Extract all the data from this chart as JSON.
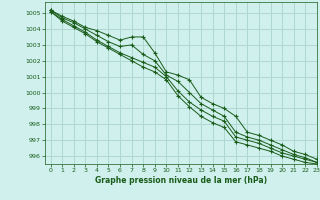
{
  "title": "Graphe pression niveau de la mer (hPa)",
  "background_color": "#cff0ec",
  "grid_color": "#afd8d2",
  "line_color": "#1a5c1a",
  "xlim": [
    -0.5,
    23
  ],
  "ylim": [
    995.5,
    1005.7
  ],
  "yticks": [
    996,
    997,
    998,
    999,
    1000,
    1001,
    1002,
    1003,
    1004,
    1005
  ],
  "xticks": [
    0,
    1,
    2,
    3,
    4,
    5,
    6,
    7,
    8,
    9,
    10,
    11,
    12,
    13,
    14,
    15,
    16,
    17,
    18,
    19,
    20,
    21,
    22,
    23
  ],
  "series": [
    [
      1005.2,
      1004.8,
      1004.5,
      1004.1,
      1003.9,
      1003.6,
      1003.3,
      1003.5,
      1003.5,
      1002.5,
      1001.3,
      1001.1,
      1000.8,
      999.7,
      999.3,
      999.0,
      998.5,
      997.5,
      997.3,
      997.0,
      996.7,
      996.3,
      996.1,
      995.8
    ],
    [
      1005.2,
      1004.7,
      1004.4,
      1004.0,
      1003.6,
      1003.2,
      1002.9,
      1003.0,
      1002.4,
      1002.0,
      1001.1,
      1000.7,
      1000.0,
      999.3,
      998.9,
      998.5,
      997.5,
      997.2,
      997.0,
      996.7,
      996.4,
      996.1,
      995.9,
      995.6
    ],
    [
      1005.1,
      1004.6,
      1004.2,
      1003.8,
      1003.3,
      1002.9,
      1002.5,
      1002.2,
      1001.9,
      1001.6,
      1001.0,
      1000.1,
      999.4,
      998.9,
      998.5,
      998.2,
      997.2,
      997.0,
      996.8,
      996.5,
      996.2,
      996.0,
      995.8,
      995.6
    ],
    [
      1005.1,
      1004.5,
      1004.1,
      1003.7,
      1003.2,
      1002.8,
      1002.4,
      1002.0,
      1001.6,
      1001.3,
      1000.8,
      999.8,
      999.1,
      998.5,
      998.1,
      997.8,
      996.9,
      996.7,
      996.5,
      996.3,
      996.0,
      995.8,
      995.6,
      995.5
    ]
  ]
}
